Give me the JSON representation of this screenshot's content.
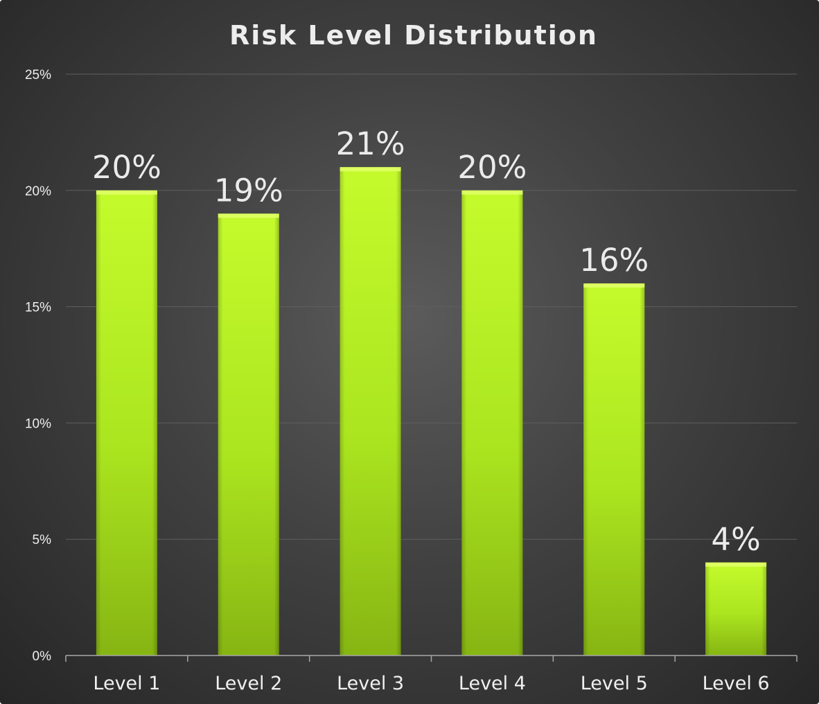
{
  "chart_data": {
    "type": "bar",
    "title": "Risk Level Distribution",
    "categories": [
      "Level 1",
      "Level 2",
      "Level 3",
      "Level 4",
      "Level 5",
      "Level 6"
    ],
    "values": [
      20,
      19,
      21,
      20,
      16,
      4
    ],
    "data_labels": [
      "20%",
      "19%",
      "21%",
      "20%",
      "16%",
      "4%"
    ],
    "xlabel": "",
    "ylabel": "",
    "ylim": [
      0,
      25
    ],
    "yticks": [
      0,
      5,
      10,
      15,
      20,
      25
    ],
    "ytick_labels": [
      "0%",
      "5%",
      "10%",
      "15%",
      "20%",
      "25%"
    ],
    "grid": true,
    "legend": "none",
    "colors": {
      "bar_top": "#c4fb2c",
      "bar_mid": "#abe51f",
      "bar_bottom": "#86b513",
      "background_center": "#5b5b5b",
      "background_edge": "#262626"
    }
  }
}
